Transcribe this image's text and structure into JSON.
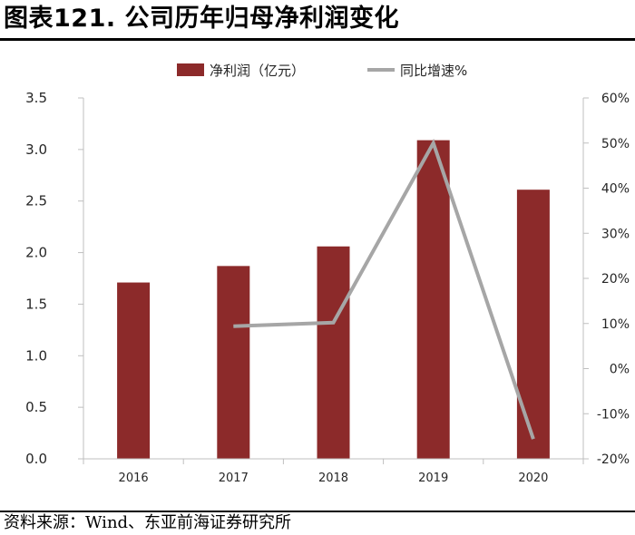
{
  "title": "图表121. 公司历年归母净利润变化",
  "source": "资料来源：Wind、东亚前海证券研究所",
  "colors": {
    "bar": "#8c2a2a",
    "line": "#a6a6a6",
    "axis": "#bfbfbf",
    "text": "#262626"
  },
  "chart_data": {
    "type": "bar",
    "categories": [
      "2016",
      "2017",
      "2018",
      "2019",
      "2020"
    ],
    "series": [
      {
        "name": "净利润（亿元）",
        "type": "bar",
        "axis": "left",
        "values": [
          1.71,
          1.87,
          2.06,
          3.09,
          2.61
        ]
      },
      {
        "name": "同比增速%",
        "type": "line",
        "axis": "right",
        "values": [
          null,
          9.4,
          10.2,
          50.0,
          -15.6
        ]
      }
    ],
    "y_left": {
      "ylim": [
        0,
        3.5
      ],
      "ticks": [
        "0.0",
        "0.5",
        "1.0",
        "1.5",
        "2.0",
        "2.5",
        "3.0",
        "3.5"
      ],
      "tick_values": [
        0,
        0.5,
        1.0,
        1.5,
        2.0,
        2.5,
        3.0,
        3.5
      ]
    },
    "y_right": {
      "ylim": [
        -20,
        60
      ],
      "ticks": [
        "-20%",
        "-10%",
        "0%",
        "10%",
        "20%",
        "30%",
        "40%",
        "50%",
        "60%"
      ],
      "tick_values": [
        -20,
        -10,
        0,
        10,
        20,
        30,
        40,
        50,
        60
      ]
    },
    "legend": [
      "净利润（亿元）",
      "同比增速%"
    ]
  }
}
